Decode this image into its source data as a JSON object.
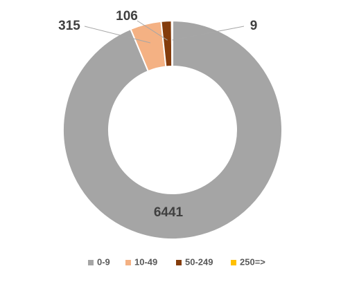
{
  "chart_data": {
    "type": "donut",
    "categories": [
      "0-9",
      "10-49",
      "50-249",
      "250=>"
    ],
    "values": [
      6441,
      315,
      106,
      9
    ],
    "colors": [
      "#a5a5a5",
      "#f4b183",
      "#843c0c",
      "#ffc000"
    ],
    "legend": "bottom"
  }
}
